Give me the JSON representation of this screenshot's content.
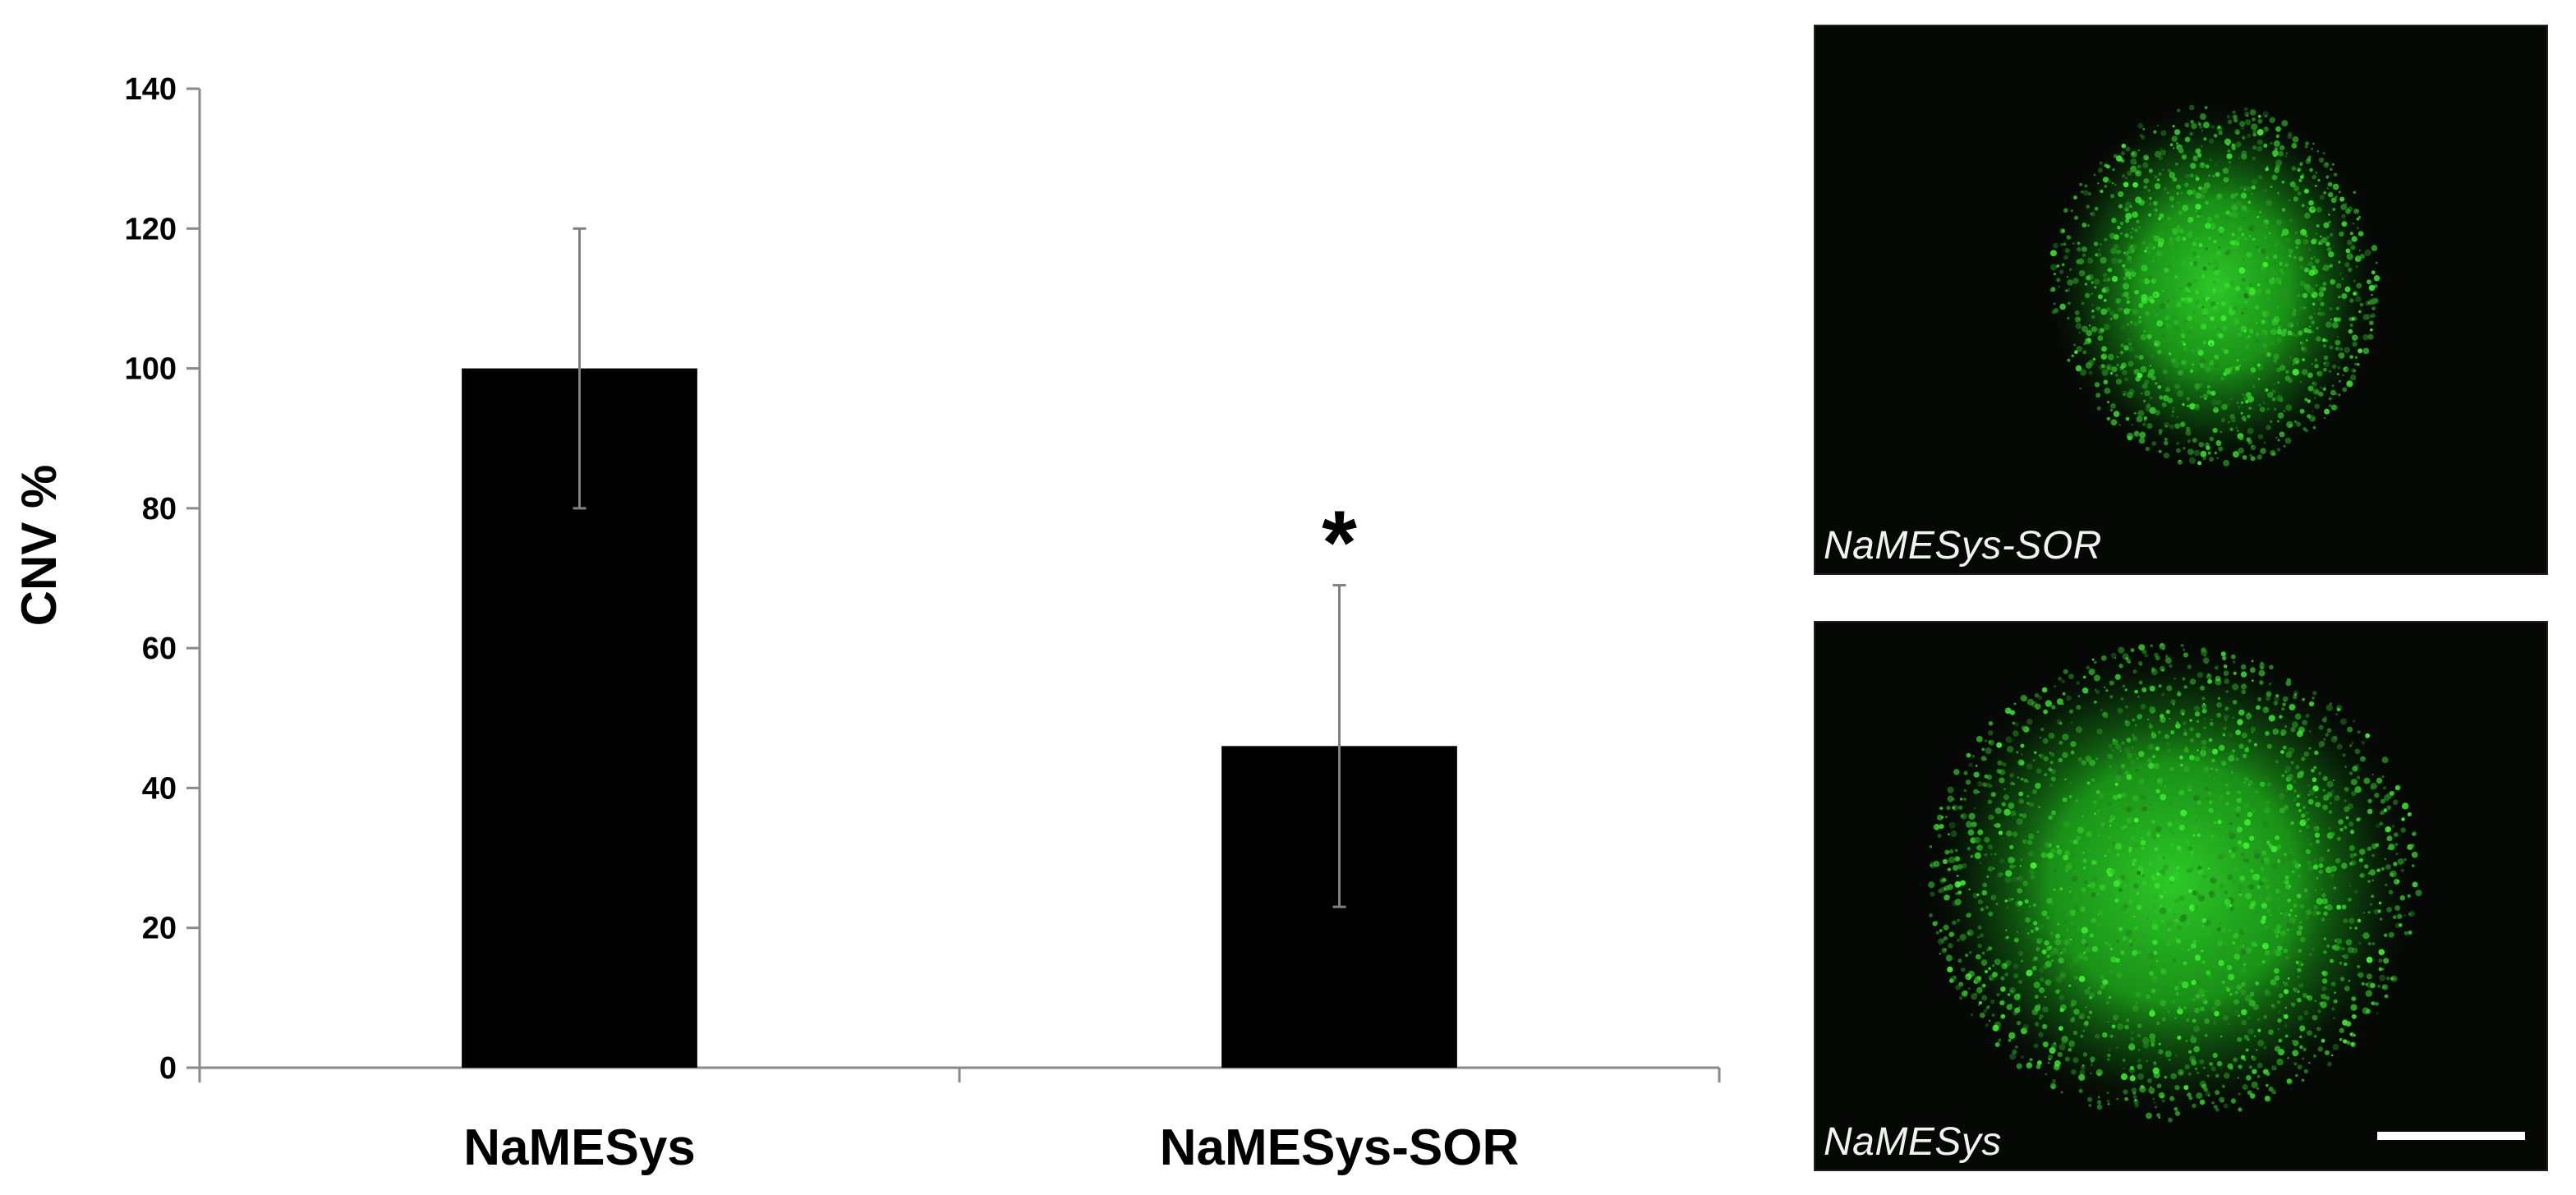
{
  "chart_data": {
    "type": "bar",
    "ylabel": "CNV %",
    "ylim": [
      0,
      140
    ],
    "yticks": [
      0,
      20,
      40,
      60,
      80,
      100,
      120,
      140
    ],
    "categories": [
      "NaMESys",
      "NaMESys-SOR"
    ],
    "values": [
      100,
      46
    ],
    "error": [
      20,
      23
    ],
    "significance": [
      "",
      "*"
    ],
    "bar_color": "#000000",
    "errorbar_color": "#808080",
    "grid": false,
    "legend": "none"
  },
  "images": {
    "top": {
      "caption": "NaMESys-SOR",
      "signal_color": "#22c51e"
    },
    "bottom": {
      "caption": "NaMESys",
      "signal_color": "#22c51e"
    }
  }
}
